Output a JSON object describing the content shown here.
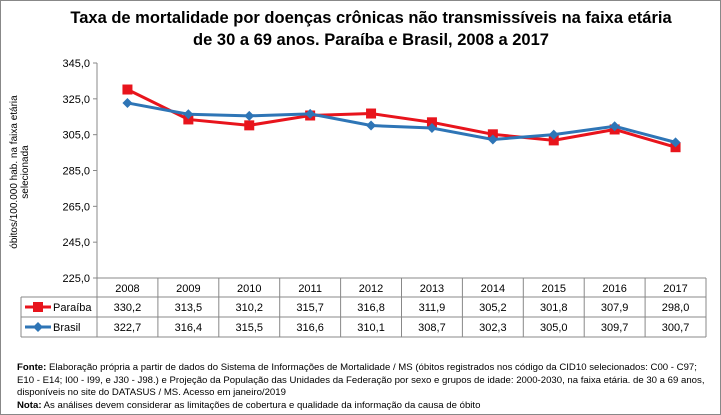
{
  "chart_data": {
    "type": "line",
    "title": "Taxa de mortalidade por doenças crônicas não transmissíveis na faixa etária de 30 a 69 anos. Paraíba e Brasil, 2008 a 2017",
    "ylabel": "óbitos/100.000 hab. na faixa etária selecionada",
    "xlabel": "",
    "ylim": [
      225,
      345
    ],
    "yticks": [
      "225,0",
      "245,0",
      "265,0",
      "285,0",
      "305,0",
      "325,0",
      "345,0"
    ],
    "grid": false,
    "legend": "data-table",
    "categories": [
      "2008",
      "2009",
      "2010",
      "2011",
      "2012",
      "2013",
      "2014",
      "2015",
      "2016",
      "2017"
    ],
    "series": [
      {
        "name": "Paraíba",
        "color": "#e8141c",
        "marker": "square",
        "values": [
          330.2,
          313.5,
          310.2,
          315.7,
          316.8,
          311.9,
          305.2,
          301.8,
          307.9,
          298.0
        ],
        "labels": [
          "330,2",
          "313,5",
          "310,2",
          "315,7",
          "316,8",
          "311,9",
          "305,2",
          "301,8",
          "307,9",
          "298,0"
        ]
      },
      {
        "name": "Brasil",
        "color": "#2e75b6",
        "marker": "diamond",
        "values": [
          322.7,
          316.4,
          315.5,
          316.6,
          310.1,
          308.7,
          302.3,
          305.0,
          309.7,
          300.7
        ],
        "labels": [
          "322,7",
          "316,4",
          "315,5",
          "316,6",
          "310,1",
          "308,7",
          "302,3",
          "305,0",
          "309,7",
          "300,7"
        ]
      }
    ]
  },
  "notes": {
    "fonte_label": "Fonte:",
    "fonte_text": " Elaboração própria a partir de dados do Sistema de Informações de Mortalidade / MS (óbitos registrados nos código da CID10 selecionados: C00 - C97; E10 - E14; I00 - I99, e J30 - J98.) e Projeção da População das Unidades da Federação por sexo e grupos de idade: 2000-2030, na faixa etária. de 30 a 69 anos, disponíveis no site do DATASUS / MS.  Acesso em janeiro/2019",
    "nota_label": "Nota:",
    "nota_text": "  As análises devem considerar as limitações de cobertura e qualidade da informação da causa de óbito"
  }
}
